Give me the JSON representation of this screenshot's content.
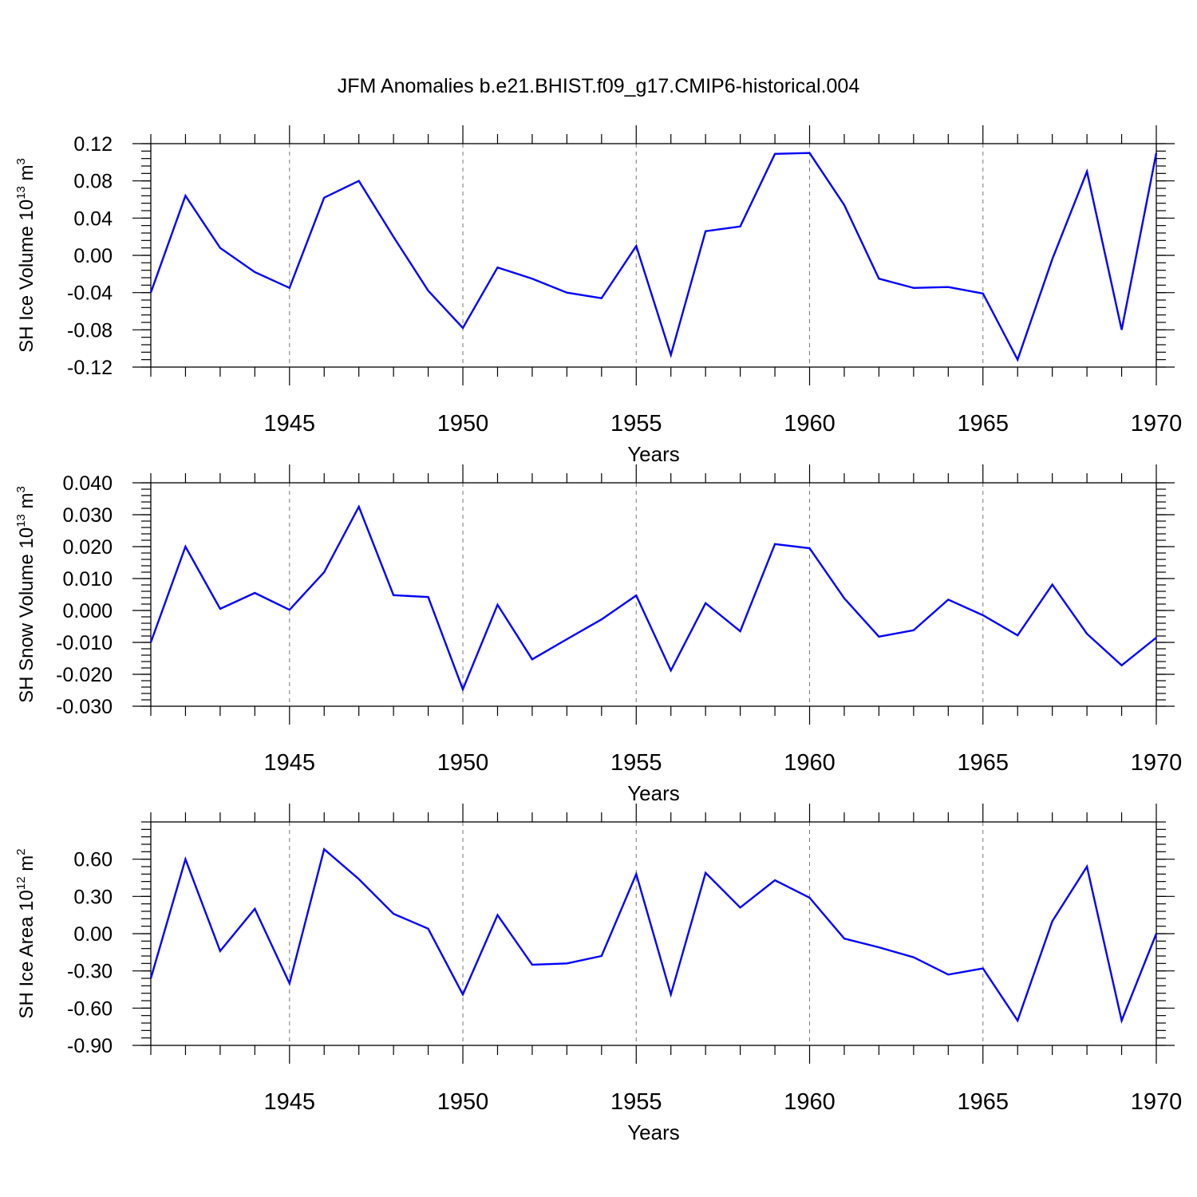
{
  "title": "JFM Anomalies b.e21.BHIST.f09_g17.CMIP6-historical.004",
  "colors": {
    "line": "#0000ff",
    "axis": "#000000",
    "grid": "#777777"
  },
  "chart_data": [
    {
      "type": "line",
      "ylabel_main": "SH Ice Volume 10",
      "ylabel_exp": "13",
      "ylabel_unit": " m",
      "ylabel_unit_exp": "3",
      "xlabel": "Years",
      "xlim": [
        1941,
        1970
      ],
      "ylim": [
        -0.12,
        0.12
      ],
      "xticks": [
        1945,
        1950,
        1955,
        1960,
        1965,
        1970
      ],
      "xtick_labels": [
        "1945",
        "1950",
        "1955",
        "1960",
        "1965",
        "1970"
      ],
      "yticks": [
        -0.12,
        -0.08,
        -0.04,
        0.0,
        0.04,
        0.08,
        0.12
      ],
      "ytick_labels": [
        "-0.12",
        "-0.08",
        "-0.04",
        "0.00",
        "0.04",
        "0.08",
        "0.12"
      ],
      "yminor_step": 0.008,
      "grid_x": true,
      "series": [
        {
          "name": "SH Ice Volume",
          "x": [
            1941,
            1942,
            1943,
            1944,
            1945,
            1946,
            1947,
            1948,
            1949,
            1950,
            1951,
            1952,
            1953,
            1954,
            1955,
            1956,
            1957,
            1958,
            1959,
            1960,
            1961,
            1962,
            1963,
            1964,
            1965,
            1966,
            1967,
            1968,
            1969,
            1970
          ],
          "values": [
            -0.04,
            0.064,
            0.008,
            -0.018,
            -0.035,
            0.062,
            0.08,
            0.02,
            -0.038,
            -0.078,
            -0.013,
            -0.025,
            -0.04,
            -0.046,
            0.01,
            -0.107,
            0.026,
            0.031,
            0.109,
            0.11,
            0.054,
            -0.025,
            -0.035,
            -0.034,
            -0.041,
            -0.112,
            -0.004,
            0.09,
            -0.08,
            0.11
          ]
        }
      ]
    },
    {
      "type": "line",
      "ylabel_main": "SH Snow Volume 10",
      "ylabel_exp": "13",
      "ylabel_unit": " m",
      "ylabel_unit_exp": "3",
      "xlabel": "Years",
      "xlim": [
        1941,
        1970
      ],
      "ylim": [
        -0.03,
        0.04
      ],
      "xticks": [
        1945,
        1950,
        1955,
        1960,
        1965,
        1970
      ],
      "xtick_labels": [
        "1945",
        "1950",
        "1955",
        "1960",
        "1965",
        "1970"
      ],
      "yticks": [
        -0.03,
        -0.02,
        -0.01,
        0.0,
        0.01,
        0.02,
        0.03,
        0.04
      ],
      "ytick_labels": [
        "-0.030",
        "-0.020",
        "-0.010",
        "0.000",
        "0.010",
        "0.020",
        "0.030",
        "0.040"
      ],
      "yminor_step": 0.002,
      "grid_x": true,
      "series": [
        {
          "name": "SH Snow Volume",
          "x": [
            1941,
            1942,
            1943,
            1944,
            1945,
            1946,
            1947,
            1948,
            1949,
            1950,
            1951,
            1952,
            1953,
            1954,
            1955,
            1956,
            1957,
            1958,
            1959,
            1960,
            1961,
            1962,
            1963,
            1964,
            1965,
            1966,
            1967,
            1968,
            1969,
            1970
          ],
          "values": [
            -0.01,
            0.02,
            0.0005,
            0.0055,
            0.0002,
            0.012,
            0.0325,
            0.0048,
            0.0042,
            -0.0247,
            0.0018,
            -0.0153,
            -0.009,
            -0.0028,
            0.0047,
            -0.0188,
            0.0023,
            -0.0065,
            0.0208,
            0.0195,
            0.0038,
            -0.0082,
            -0.0062,
            0.0034,
            -0.0015,
            -0.0078,
            0.0081,
            -0.0073,
            -0.0172,
            -0.0085
          ]
        }
      ]
    },
    {
      "type": "line",
      "ylabel_main": "SH Ice Area 10",
      "ylabel_exp": "12",
      "ylabel_unit": " m",
      "ylabel_unit_exp": "2",
      "xlabel": "Years",
      "xlim": [
        1941,
        1970
      ],
      "ylim": [
        -0.9,
        0.9
      ],
      "xticks": [
        1945,
        1950,
        1955,
        1960,
        1965,
        1970
      ],
      "xtick_labels": [
        "1945",
        "1950",
        "1955",
        "1960",
        "1965",
        "1970"
      ],
      "yticks": [
        -0.9,
        -0.6,
        -0.3,
        0.0,
        0.3,
        0.6
      ],
      "ytick_labels": [
        "-0.90",
        "-0.60",
        "-0.30",
        "0.00",
        "0.30",
        "0.60"
      ],
      "yminor_step": 0.06,
      "grid_x": true,
      "series": [
        {
          "name": "SH Ice Area",
          "x": [
            1941,
            1942,
            1943,
            1944,
            1945,
            1946,
            1947,
            1948,
            1949,
            1950,
            1951,
            1952,
            1953,
            1954,
            1955,
            1956,
            1957,
            1958,
            1959,
            1960,
            1961,
            1962,
            1963,
            1964,
            1965,
            1966,
            1967,
            1968,
            1969,
            1970
          ],
          "values": [
            -0.36,
            0.6,
            -0.14,
            0.2,
            -0.4,
            0.68,
            0.44,
            0.16,
            0.04,
            -0.49,
            0.15,
            -0.25,
            -0.24,
            -0.18,
            0.48,
            -0.49,
            0.49,
            0.21,
            0.43,
            0.29,
            -0.04,
            -0.11,
            -0.19,
            -0.33,
            -0.28,
            -0.7,
            0.1,
            0.54,
            -0.7,
            0.0
          ]
        }
      ]
    }
  ]
}
